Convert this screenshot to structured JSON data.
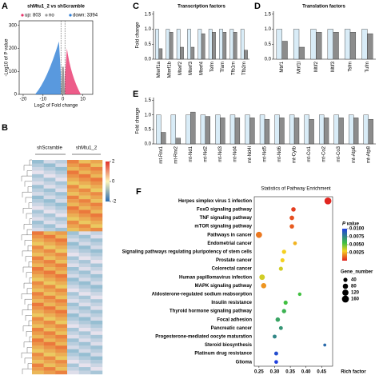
{
  "chart_data": [
    {
      "type": "volcano",
      "panel": "A",
      "title": "shMtu1_2 vs shScramble",
      "legend": [
        "up: 803",
        "no",
        "down: 3394"
      ],
      "legend_colors": [
        "#e8336b",
        "#9a9a9a",
        "#2f7fd6"
      ],
      "xlabel": "Log2 of Fold change",
      "ylabel": "-Log10 of P value",
      "xlim": [
        -22,
        15
      ],
      "xticks": [
        -20,
        -10,
        0,
        10
      ],
      "ylim": [
        0,
        320
      ],
      "yticks": [
        0,
        100,
        200,
        300
      ]
    },
    {
      "type": "heatmap",
      "panel": "B",
      "columns": [
        "shScramble",
        "shMtu1_2"
      ],
      "colorbar_ticks": [
        2,
        0,
        -2
      ],
      "colors": [
        "#2b6cb0",
        "#fdf6b8",
        "#e0302a"
      ]
    },
    {
      "type": "bar",
      "panel": "C",
      "title": "Transcription factors",
      "ylabel": "Fold change",
      "categories": [
        "Mterf1a",
        "Mterf1b",
        "Mterf2",
        "Mterf3",
        "Mterf4",
        "Tefm",
        "Tfam",
        "Tfb1m",
        "Tfb2m"
      ],
      "label_colors": [
        "#d62020",
        "#000000",
        "#d62020",
        "#d62020",
        "#000000",
        "#000000",
        "#000000",
        "#000000",
        "#d62020"
      ],
      "series": [
        {
          "color": "#d9ecf7",
          "values": [
            1.0,
            1.0,
            1.0,
            1.0,
            1.0,
            1.0,
            1.0,
            1.0,
            1.0
          ]
        },
        {
          "color": "#8c8c8c",
          "values": [
            0.35,
            0.9,
            0.4,
            0.4,
            0.85,
            0.9,
            0.9,
            0.9,
            0.3
          ]
        }
      ],
      "ylim": [
        0,
        1.6
      ],
      "yticks": [
        {
          "value": 0,
          "label": "0.0"
        },
        {
          "value": 0.5,
          "label": "0.5"
        },
        {
          "value": 1,
          "label": "1.0"
        },
        {
          "value": 1.5,
          "label": "1.5"
        }
      ]
    },
    {
      "type": "bar",
      "panel": "D",
      "title": "Translation factors",
      "ylabel": "",
      "categories": [
        "Mtrf1",
        "Mtrf1l",
        "Mtif2",
        "Mtif3",
        "Tsfm",
        "Tufm"
      ],
      "label_colors": [
        "#d62020",
        "#d62020",
        "#000000",
        "#000000",
        "#000000",
        "#000000"
      ],
      "series": [
        {
          "color": "#d9ecf7",
          "values": [
            1.0,
            1.0,
            1.0,
            1.0,
            1.0,
            1.0
          ]
        },
        {
          "color": "#8c8c8c",
          "values": [
            0.6,
            0.4,
            0.9,
            0.9,
            0.9,
            0.85
          ]
        }
      ],
      "ylim": [
        0,
        1.6
      ],
      "yticks": [
        {
          "value": 0,
          "label": "0.0"
        },
        {
          "value": 0.5,
          "label": "0.5"
        },
        {
          "value": 1,
          "label": "1.0"
        },
        {
          "value": 1.5,
          "label": "1.5"
        }
      ]
    },
    {
      "type": "bar",
      "panel": "E",
      "title": "",
      "ylabel": "Fold change",
      "categories": [
        "mt-Rnr1",
        "mt-Rnr2",
        "mt-Nd1",
        "mt-Nd2",
        "mt-Nd3",
        "mt-Nd4",
        "mt-Nd4l",
        "mt-Nd5",
        "mt-Nd6",
        "mt-Cytb",
        "mt-Co1",
        "mt-Co2",
        "mt-Co3",
        "mt-Atp6",
        "mt-Atp8"
      ],
      "label_colors": [
        "#000000",
        "#d62020",
        "#000000",
        "#000000",
        "#000000",
        "#000000",
        "#000000",
        "#000000",
        "#000000",
        "#000000",
        "#000000",
        "#000000",
        "#000000",
        "#000000",
        "#000000"
      ],
      "series": [
        {
          "color": "#d9ecf7",
          "values": [
            1.0,
            1.0,
            1.0,
            1.0,
            1.0,
            1.0,
            1.0,
            1.0,
            1.0,
            1.0,
            1.0,
            1.0,
            1.0,
            1.0,
            1.0
          ]
        },
        {
          "color": "#8c8c8c",
          "values": [
            0.4,
            0.2,
            1.1,
            0.95,
            0.9,
            0.9,
            0.9,
            0.85,
            0.9,
            0.9,
            0.85,
            0.9,
            0.9,
            0.9,
            0.85
          ]
        }
      ],
      "ylim": [
        0,
        1.6
      ],
      "yticks": [
        {
          "value": 0,
          "label": "0.0"
        },
        {
          "value": 0.5,
          "label": "0.5"
        },
        {
          "value": 1,
          "label": "1.0"
        },
        {
          "value": 1.5,
          "label": "1.5"
        }
      ]
    },
    {
      "type": "dotplot",
      "panel": "F",
      "title": "Statistics of Pathway Enrichment",
      "xlabel": "Rich factor",
      "categories": [
        "Herpes simplex virus 1 infection",
        "FoxO signaling pathway",
        "TNF signaling pathway",
        "mTOR signaling pathway",
        "Pathways in cancer",
        "Endometrial cancer",
        "Signaling pathways regulating pluripotency of stem cells",
        "Prostate cancer",
        "Colorectal cancer",
        "Human papillomavirus infection",
        "MAPK signaling pathway",
        "Aldosterone-regulated sodium reabsorption",
        "Insulin resistance",
        "Thyroid hormone signaling pathway",
        "Focal adhesion",
        "Pancreatic cancer",
        "Progesterone-mediated oocyte maturation",
        "Steroid biosynthesis",
        "Platinum drug resistance",
        "Glioma"
      ],
      "label_colors": [
        "#000000",
        "#d62020",
        "#d62020",
        "#d62020",
        "#000000",
        "#000000",
        "#000000",
        "#000000",
        "#000000",
        "#000000",
        "#d62020",
        "#000000",
        "#000000",
        "#000000",
        "#000000",
        "#000000",
        "#000000",
        "#000000",
        "#000000",
        "#000000"
      ],
      "values": [
        0.47,
        0.36,
        0.355,
        0.355,
        0.25,
        0.365,
        0.33,
        0.325,
        0.32,
        0.26,
        0.265,
        0.38,
        0.335,
        0.33,
        0.31,
        0.32,
        0.3,
        0.46,
        0.305,
        0.305
      ],
      "pvalues": [
        0.0001,
        0.0005,
        0.0008,
        0.001,
        0.0015,
        0.0025,
        0.003,
        0.003,
        0.0035,
        0.0035,
        0.002,
        0.0055,
        0.0055,
        0.006,
        0.0065,
        0.007,
        0.0075,
        0.0085,
        0.0095,
        0.01
      ],
      "gene_numbers": [
        160,
        50,
        55,
        50,
        120,
        30,
        45,
        40,
        40,
        90,
        80,
        25,
        40,
        45,
        50,
        35,
        35,
        15,
        35,
        30
      ],
      "xlim": [
        0.235,
        0.485
      ],
      "xticks": [
        0.25,
        {
          "value": 0.3,
          "label": "0.30"
        },
        0.35,
        {
          "value": 0.4,
          "label": "0.40"
        },
        0.45
      ],
      "color_title": "P value",
      "color_ticks": [
        {
          "value": 0.01,
          "label": "0.0100"
        },
        {
          "value": 0.0075,
          "label": "0.0075"
        },
        {
          "value": 0.005,
          "label": "0.0050"
        },
        {
          "value": 0.0025,
          "label": "0.0025"
        }
      ],
      "color_range": [
        0,
        0.01
      ],
      "size_title": "Gene_number",
      "size_ticks": [
        40,
        80,
        120,
        160
      ]
    }
  ]
}
